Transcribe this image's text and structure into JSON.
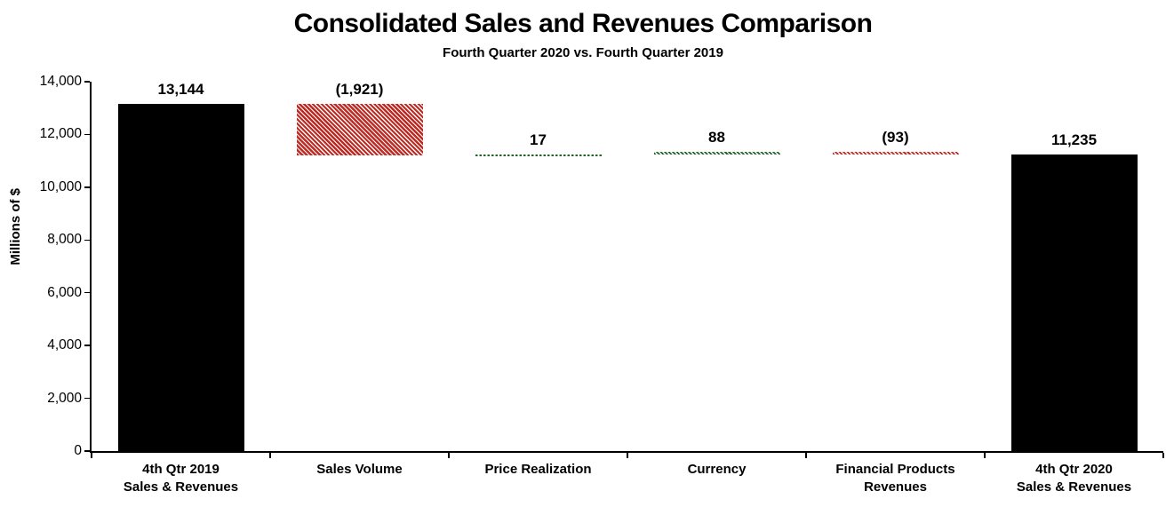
{
  "page": {
    "background": "#ffffff"
  },
  "chart_data": {
    "type": "bar",
    "subtype": "waterfall",
    "title": "Consolidated Sales and Revenues Comparison",
    "subtitle": "Fourth Quarter 2020 vs. Fourth Quarter 2019",
    "ylabel": "Millions of $",
    "xlabel": "",
    "ylim": [
      0,
      14000
    ],
    "ytick_step": 2000,
    "ytick_labels": [
      "0",
      "2,000",
      "4,000",
      "6,000",
      "8,000",
      "10,000",
      "12,000",
      "14,000"
    ],
    "grid": false,
    "legend_position": "none",
    "categories": [
      "4th Qtr 2019 Sales & Revenues",
      "Sales Volume",
      "Price Realization",
      "Currency",
      "Financial Products Revenues",
      "4th Qtr 2020 Sales & Revenues"
    ],
    "bars": [
      {
        "category_lines": [
          "4th Qtr 2019",
          "Sales & Revenues"
        ],
        "value": 13144,
        "display": "13,144",
        "start": 0,
        "end": 13144,
        "style": "solid-black"
      },
      {
        "category_lines": [
          "Sales Volume"
        ],
        "value": -1921,
        "display": "(1,921)",
        "start": 13144,
        "end": 11223,
        "style": "red-hatch"
      },
      {
        "category_lines": [
          "Price Realization"
        ],
        "value": 17,
        "display": "17",
        "start": 11223,
        "end": 11240,
        "style": "green-dotted"
      },
      {
        "category_lines": [
          "Currency"
        ],
        "value": 88,
        "display": "88",
        "start": 11240,
        "end": 11328,
        "style": "green-hatch"
      },
      {
        "category_lines": [
          "Financial Products",
          "Revenues"
        ],
        "value": -93,
        "display": "(93)",
        "start": 11328,
        "end": 11235,
        "style": "red-hatch-thin"
      },
      {
        "category_lines": [
          "4th Qtr 2020",
          "Sales & Revenues"
        ],
        "value": 11235,
        "display": "11,235",
        "start": 0,
        "end": 11235,
        "style": "solid-black"
      }
    ],
    "colors": {
      "total_bar_black": "#000000",
      "decrease_red": "#bf2a22",
      "increase_green": "#25642a",
      "axis": "#000000",
      "text": "#000000"
    }
  }
}
